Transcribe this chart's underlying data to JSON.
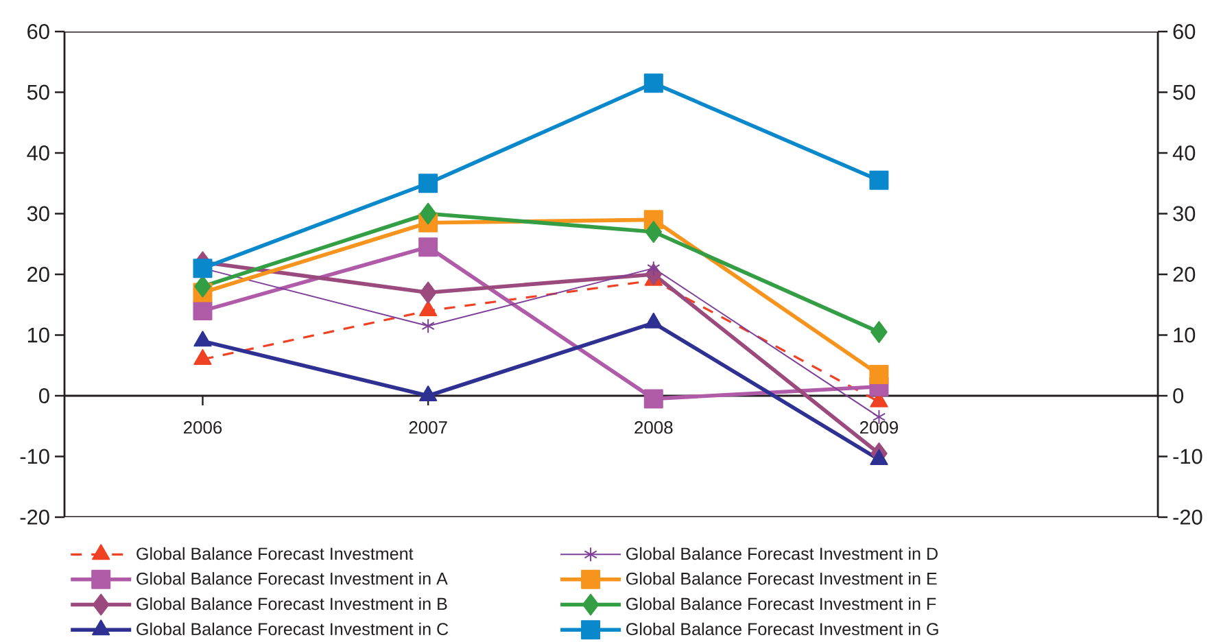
{
  "chart_data": {
    "type": "line",
    "categories": [
      "2006",
      "2007",
      "2008",
      "2009"
    ],
    "series": [
      {
        "name": "Global Balance Forecast Investment",
        "color": "#ef4123",
        "values": [
          6,
          14,
          19,
          -1
        ],
        "marker": "triangle",
        "line_style": "dashed"
      },
      {
        "name": "Global Balance Forecast Investment in A",
        "color": "#b05ba8",
        "values": [
          14,
          24.5,
          -0.5,
          1.5
        ],
        "marker": "square"
      },
      {
        "name": "Global Balance Forecast Investment in B",
        "color": "#9b4a7d",
        "values": [
          22,
          17,
          20,
          -9.5
        ],
        "marker": "diamond"
      },
      {
        "name": "Global Balance Forecast Investment in C",
        "color": "#2e3192",
        "values": [
          9,
          0,
          12,
          -10.5
        ],
        "marker": "triangle"
      },
      {
        "name": "Global Balance Forecast Investment in D",
        "color": "#7e3f98",
        "values": [
          21,
          11.5,
          21,
          -3.5
        ],
        "marker": "cross"
      },
      {
        "name": "Global Balance Forecast Investment in E",
        "color": "#f7941d",
        "values": [
          17,
          28.5,
          29,
          3.5
        ],
        "marker": "square"
      },
      {
        "name": "Global Balance Forecast Investment in F",
        "color": "#339e44",
        "values": [
          18,
          30,
          27,
          10.5
        ],
        "marker": "diamond"
      },
      {
        "name": "Global Balance Forecast Investment in G",
        "color": "#0a88cc",
        "values": [
          21,
          35,
          51.5,
          35.5
        ],
        "marker": "square"
      }
    ],
    "ylim": [
      -20,
      60
    ],
    "yticks": [
      -20,
      -10,
      0,
      10,
      20,
      30,
      40,
      50,
      60
    ],
    "y2lim": [
      -20,
      60
    ],
    "y2ticks": [
      -20,
      -10,
      0,
      10,
      20,
      30,
      40,
      50,
      60
    ],
    "legend": "bottom",
    "line_style": "solid"
  }
}
